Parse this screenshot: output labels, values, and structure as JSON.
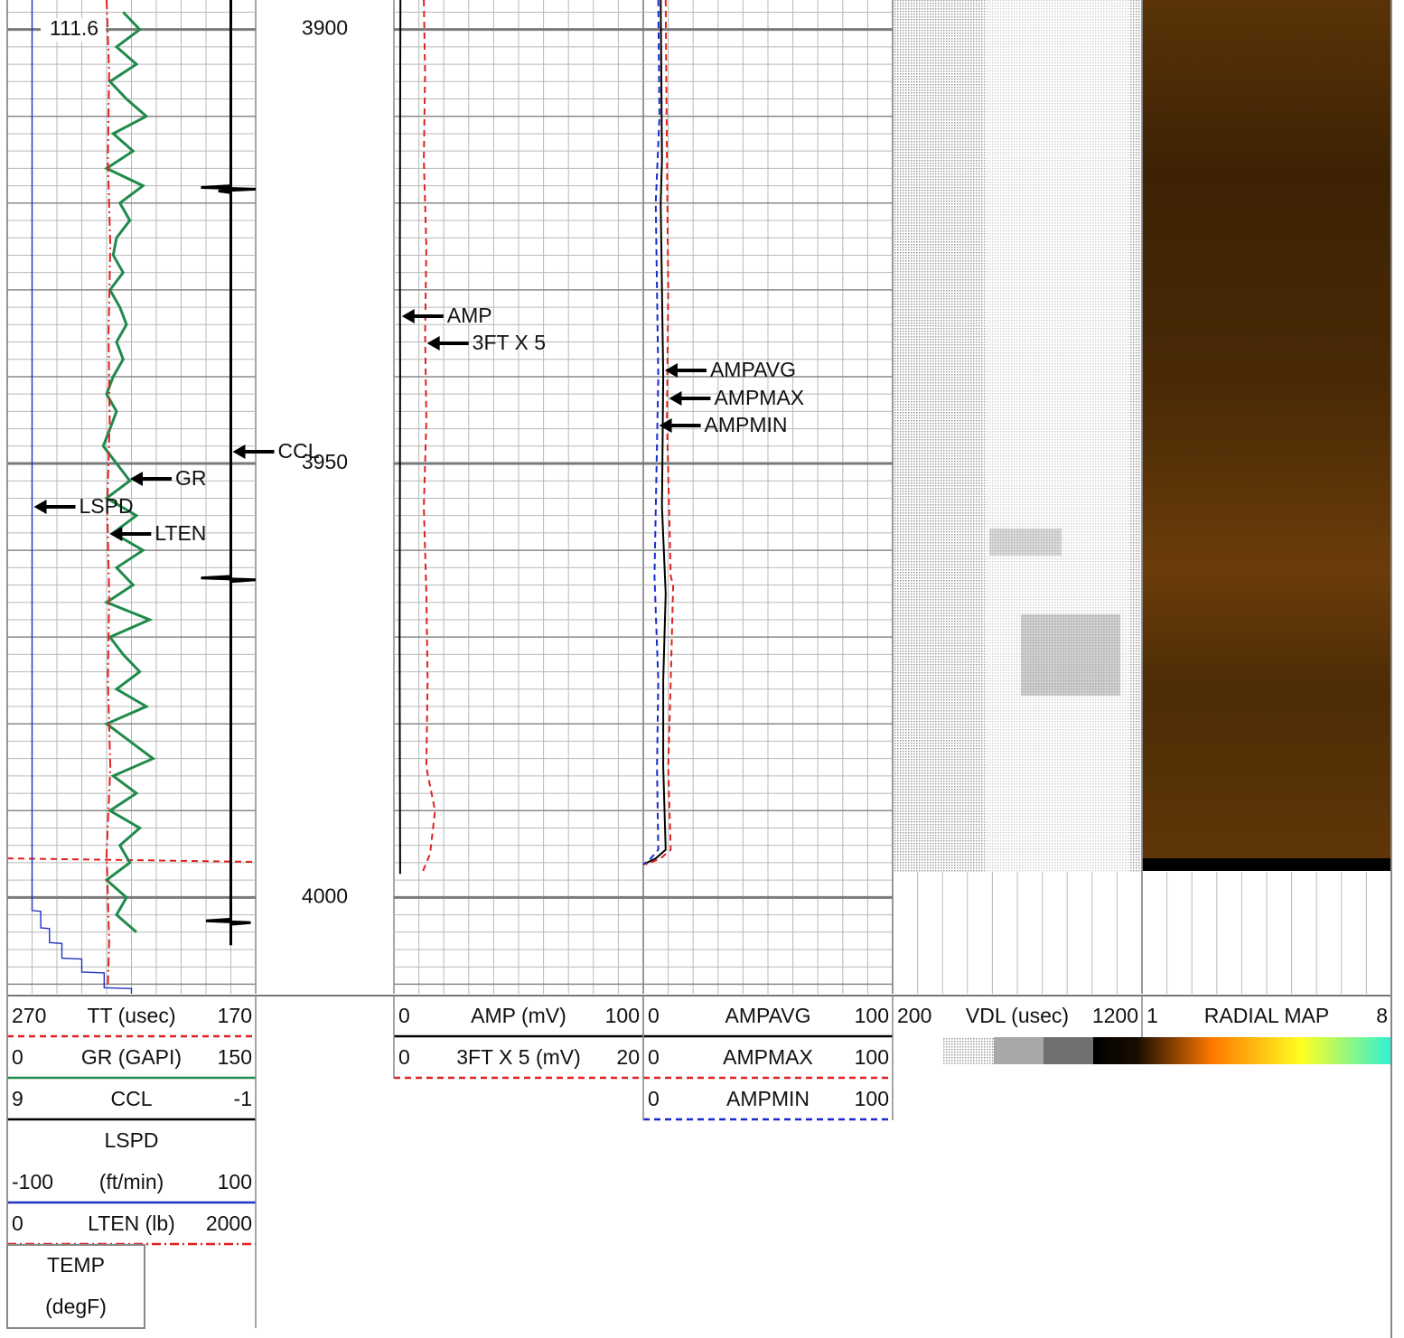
{
  "chart_data": {
    "type": "well-log",
    "ylim": [
      3896.6,
      4011.1
    ],
    "yticks": [
      3900,
      3950,
      4000
    ],
    "tracks": [
      {
        "curves": [
          {
            "header": "TT (usec)",
            "xlim": [
              270,
              170
            ],
            "color": "#e02020",
            "style": "dashed",
            "depths": [
              3995.5,
              3995.9
            ],
            "values": [
              270,
              170
            ]
          },
          {
            "label": "GR",
            "header": "GR (GAPI)",
            "xlim": [
              0,
              150
            ],
            "color": "#1f8a4c",
            "style": "solid",
            "depths": [
              3898,
              3900,
              3902,
              3904,
              3906,
              3908,
              3910,
              3912,
              3914,
              3916,
              3918,
              3920,
              3922,
              3924,
              3926,
              3928,
              3930,
              3932,
              3934,
              3936,
              3938,
              3940,
              3942,
              3944,
              3946,
              3948,
              3950,
              3952,
              3954,
              3956,
              3958,
              3960,
              3962,
              3964,
              3966,
              3968,
              3970,
              3972,
              3974,
              3976,
              3978,
              3980,
              3982,
              3984,
              3986,
              3988,
              3990,
              3992,
              3994,
              3996,
              3998,
              4000,
              4002,
              4004
            ],
            "values": [
              70,
              80,
              66,
              78,
              62,
              72,
              84,
              64,
              76,
              60,
              82,
              68,
              74,
              66,
              64,
              70,
              62,
              68,
              72,
              66,
              70,
              64,
              60,
              66,
              62,
              58,
              66,
              74,
              60,
              78,
              64,
              82,
              66,
              76,
              60,
              86,
              62,
              70,
              80,
              66,
              84,
              60,
              74,
              88,
              64,
              78,
              62,
              80,
              68,
              74,
              60,
              72,
              66,
              78
            ]
          },
          {
            "label": "CCL",
            "header": "CCL",
            "xlim": [
              9,
              -1
            ],
            "color": "#000000",
            "style": "solid",
            "depths": [
              3896.6,
              3918.0,
              3918.2,
              3918.4,
              3918.6,
              3918.8,
              3963.0,
              3963.2,
              3963.4,
              3963.6,
              4002.5,
              4002.7,
              4002.9,
              4003.1,
              4005.5
            ],
            "values": [
              0,
              0,
              1.2,
              -1,
              0.5,
              0,
              0,
              1.2,
              -1,
              0,
              0,
              1,
              -0.8,
              0,
              0
            ]
          },
          {
            "label": "LSPD",
            "header": "LSPD",
            "unit": "(ft/min)",
            "xlim": [
              -100,
              100
            ],
            "color": "#2030c0",
            "style": "thin",
            "depths": [
              3896.6,
              4001.5,
              4001.6,
              4003.5,
              4003.6,
              4005.2,
              4005.3,
              4007.0,
              4007.1,
              4008.6,
              4008.7,
              4010.4,
              4010.5,
              4011.1
            ],
            "values": [
              -80,
              -80,
              -73,
              -73,
              -66,
              -66,
              -56,
              -56,
              -40,
              -40,
              -22,
              -22,
              0,
              0
            ]
          },
          {
            "label": "LTEN",
            "header": "LTEN (lb)",
            "xlim": [
              0,
              2000
            ],
            "color": "#e02020",
            "style": "dashdot",
            "depths": [
              3896.6,
              3905,
              3915,
              3925,
              3935,
              3945,
              3955,
              3965,
              3975,
              3985,
              3995,
              4005,
              4010
            ],
            "values": [
              800,
              820,
              810,
              830,
              815,
              825,
              805,
              820,
              810,
              830,
              800,
              820,
              810
            ]
          },
          {
            "header": "TEMP",
            "unit": "(degF)",
            "readout": 111.6
          }
        ]
      },
      {
        "curves": [
          {
            "label": "AMP",
            "header": "AMP (mV)",
            "xlim": [
              0,
              100
            ],
            "color": "#000000",
            "style": "solid",
            "depths": [
              3896.6,
              3910,
              3925,
              3940,
              3955,
              3970,
              3985,
              3997.3
            ],
            "values": [
              2.6,
              2.5,
              2.4,
              2.5,
              2.4,
              2.3,
              2.4,
              2.5
            ]
          },
          {
            "label": "3FT X 5",
            "header": "3FT X 5 (mV)",
            "xlim": [
              0,
              20
            ],
            "color": "#e02020",
            "style": "dashed",
            "depths": [
              3896.6,
              3905,
              3915,
              3925,
              3935,
              3945,
              3955,
              3965,
              3975,
              3985,
              3990,
              3995,
              3997.4
            ],
            "values": [
              2.4,
              2.5,
              2.4,
              2.6,
              2.5,
              2.6,
              2.4,
              2.6,
              2.7,
              2.6,
              3.3,
              2.9,
              2.2
            ]
          }
        ]
      },
      {
        "curves": [
          {
            "label": "AMPAVG",
            "header": "AMPAVG",
            "xlim": [
              0,
              100
            ],
            "color": "#000000",
            "style": "solid",
            "depths": [
              3896.6,
              3915,
              3920,
              3940,
              3955,
              3965,
              3975,
              3985,
              3994.5,
              3995.5,
              3996.2
            ],
            "values": [
              7,
              7.5,
              7,
              8,
              7.5,
              9,
              8,
              8,
              9,
              5,
              0
            ]
          },
          {
            "label": "AMPMAX",
            "header": "AMPMAX",
            "xlim": [
              0,
              100
            ],
            "color": "#e02020",
            "style": "dashed",
            "depths": [
              3896.6,
              3915,
              3930,
              3945,
              3963,
              3964,
              3975,
              3985,
              3994.5,
              3995.5,
              3996.2
            ],
            "values": [
              9,
              9.5,
              10,
              9.5,
              11,
              12,
              11,
              10,
              11,
              7,
              1
            ]
          },
          {
            "label": "AMPMIN",
            "header": "AMPMIN",
            "xlim": [
              0,
              100
            ],
            "color": "#1a2ad0",
            "style": "dashed",
            "depths": [
              3896.6,
              3910,
              3920,
              3940,
              3963,
              3975,
              3985,
              3994.5,
              3995.5,
              3996.2
            ],
            "values": [
              6,
              6.5,
              5,
              6,
              4.5,
              6,
              5.5,
              6,
              3,
              0
            ]
          }
        ]
      },
      {
        "curves": [
          {
            "header": "VDL (usec)",
            "xlim": [
              200,
              1200
            ]
          }
        ]
      },
      {
        "curves": [
          {
            "header": "RADIAL MAP",
            "xlim": [
              1,
              8
            ]
          }
        ]
      }
    ]
  }
}
